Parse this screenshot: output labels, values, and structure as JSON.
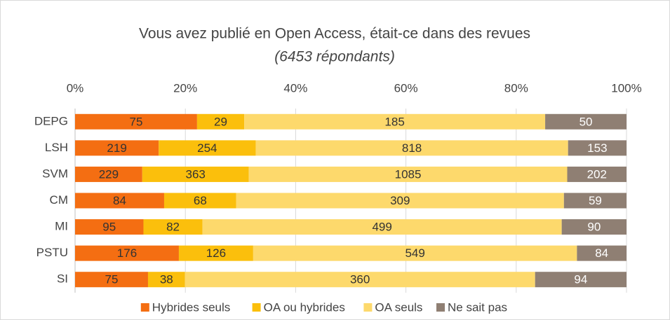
{
  "chart_data": {
    "type": "bar",
    "orientation": "horizontal",
    "stacking": "percent",
    "title": "Vous avez publié en Open Access, était-ce dans des revues",
    "subtitle": "(6453 répondants)",
    "categories": [
      "DEPG",
      "LSH",
      "SVM",
      "CM",
      "MI",
      "PSTU",
      "SI"
    ],
    "series": [
      {
        "name": "Hybrides seuls",
        "color": "#f46e12",
        "label_color": "#333333",
        "values": [
          75,
          219,
          229,
          84,
          95,
          176,
          75
        ]
      },
      {
        "name": "OA ou hybrides",
        "color": "#fbbf0c",
        "label_color": "#333333",
        "values": [
          29,
          254,
          363,
          68,
          82,
          126,
          38
        ]
      },
      {
        "name": "OA seuls",
        "color": "#fdd96c",
        "label_color": "#333333",
        "values": [
          185,
          818,
          1085,
          309,
          499,
          549,
          360
        ]
      },
      {
        "name": "Ne sait pas",
        "color": "#8f7f73",
        "label_color": "#ffffff",
        "values": [
          50,
          153,
          202,
          59,
          90,
          84,
          94
        ]
      }
    ],
    "xlim": [
      0,
      100
    ],
    "xticks": [
      {
        "value": 0,
        "label": "0%"
      },
      {
        "value": 20,
        "label": "20%"
      },
      {
        "value": 40,
        "label": "40%"
      },
      {
        "value": 60,
        "label": "60%"
      },
      {
        "value": 80,
        "label": "80%"
      },
      {
        "value": 100,
        "label": "100%"
      }
    ],
    "grid": true,
    "legend": "bottom"
  }
}
